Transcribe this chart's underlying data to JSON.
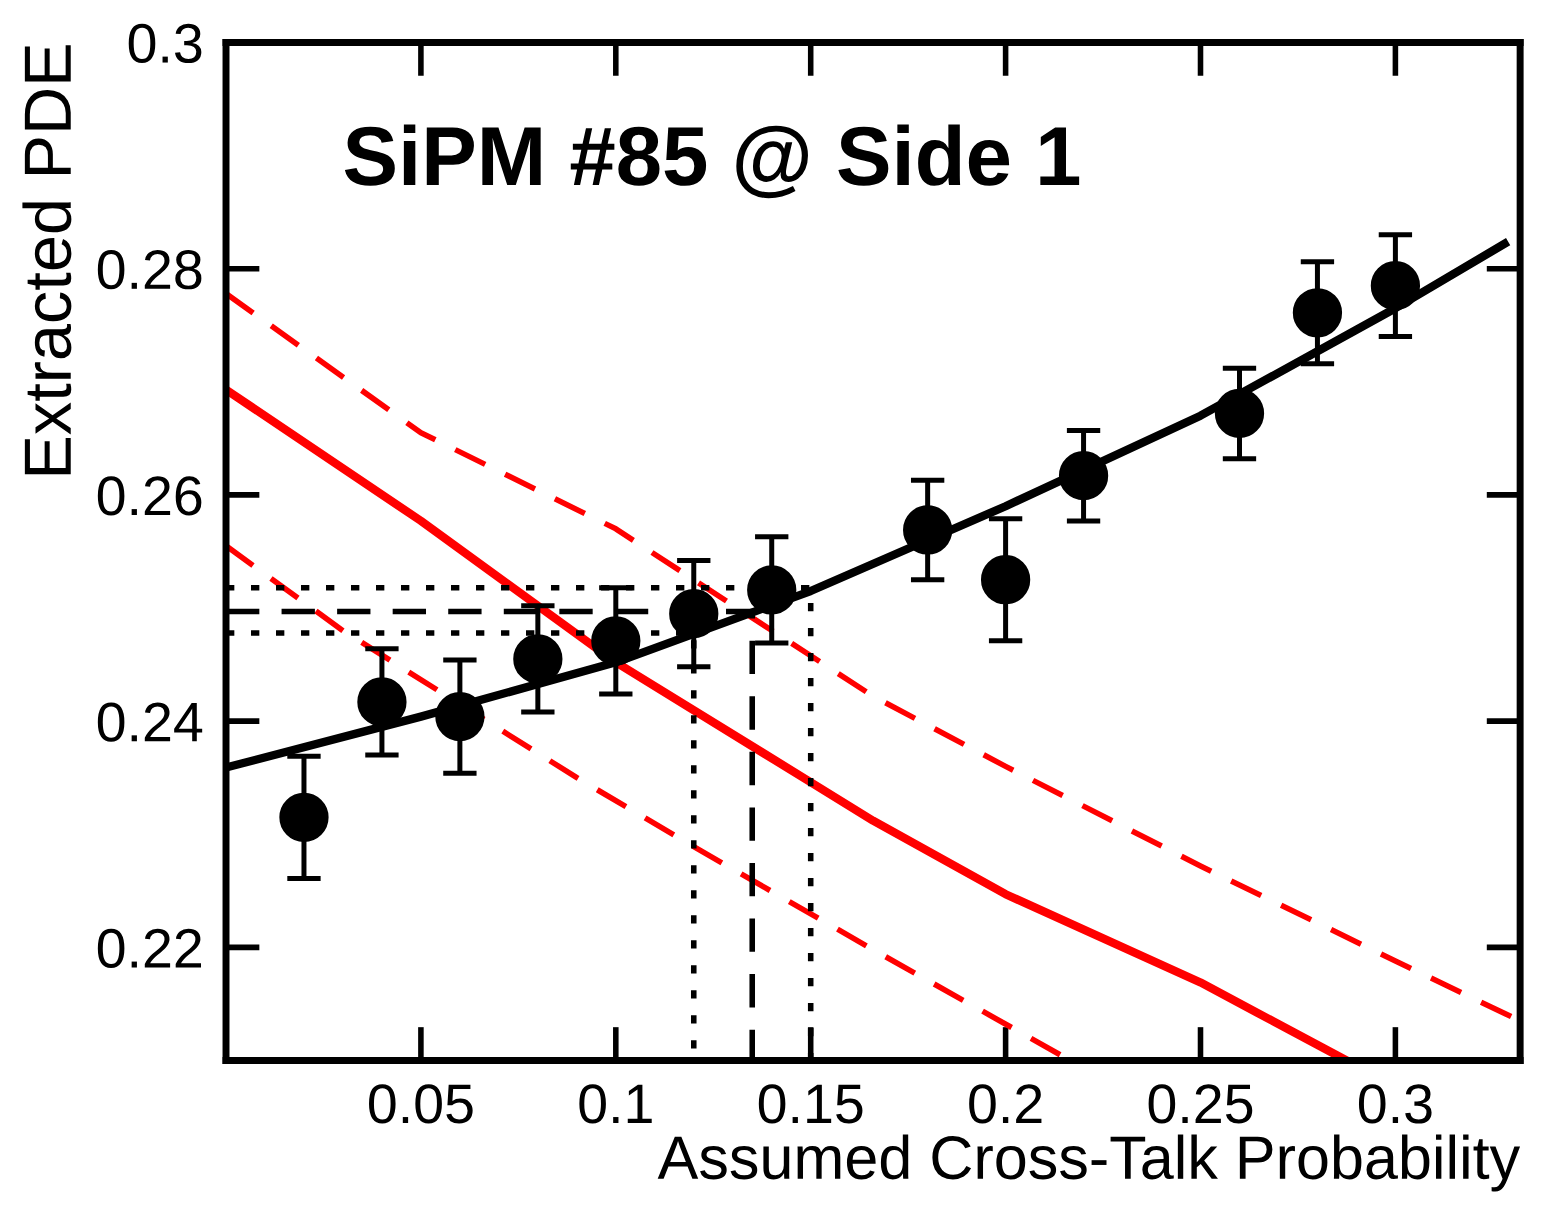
{
  "chart_data": {
    "type": "scatter",
    "xlabel": "Assumed Cross-Talk Probability",
    "ylabel": "Extracted PDE",
    "annotations": [
      "SiPM #85 @ Side 1"
    ],
    "xlim": [
      0,
      0.332
    ],
    "ylim": [
      0.21,
      0.3
    ],
    "xticks": [
      0.05,
      0.1,
      0.15,
      0.2,
      0.25,
      0.3
    ],
    "yticks": [
      0.22,
      0.24,
      0.26,
      0.28,
      0.3
    ],
    "series": [
      {
        "type": "line",
        "color": "#ff0000",
        "line_style": "dashed",
        "x": [
          0,
          0.05,
          0.1,
          0.12,
          0.166,
          0.2,
          0.25,
          0.3,
          0.332
        ],
        "values": [
          0.2778,
          0.2655,
          0.257,
          0.2525,
          0.2422,
          0.236,
          0.2272,
          0.2188,
          0.2135
        ]
      },
      {
        "type": "line",
        "color": "#ff0000",
        "line_style": "dashed",
        "x": [
          0,
          0.03,
          0.09,
          0.12,
          0.166,
          0.2166
        ],
        "values": [
          0.2555,
          0.248,
          0.235,
          0.2289,
          0.2198,
          0.21
        ]
      },
      {
        "type": "line",
        "color": "#ff0000",
        "line_style": "solid",
        "x": [
          0,
          0.05,
          0.1,
          0.15,
          0.166,
          0.2,
          0.25,
          0.2875
        ],
        "values": [
          0.2693,
          0.2577,
          0.2452,
          0.2346,
          0.2312,
          0.2247,
          0.2169,
          0.21
        ]
      },
      {
        "type": "line",
        "color": "#000000",
        "line_style": "dotted",
        "x": [
          0,
          0.15,
          0.15
        ],
        "values": [
          0.2518,
          0.2518,
          0.21
        ]
      },
      {
        "type": "line",
        "color": "#000000",
        "line_style": "dotted",
        "x": [
          0,
          0.12,
          0.12
        ],
        "values": [
          0.2478,
          0.2478,
          0.21
        ]
      },
      {
        "type": "line",
        "color": "#000000",
        "line_style": "dashed",
        "x": [
          0,
          0.135,
          0.135
        ],
        "values": [
          0.2497,
          0.2497,
          0.21
        ]
      },
      {
        "type": "line",
        "color": "#000000",
        "line_style": "solid",
        "x": [
          0,
          0.05,
          0.1,
          0.15,
          0.2,
          0.25,
          0.3,
          0.328
        ],
        "values": [
          0.2359,
          0.2404,
          0.2452,
          0.2515,
          0.259,
          0.267,
          0.2765,
          0.2822
        ]
      },
      {
        "color": "#000000",
        "marker": "circle",
        "x": [
          0.02,
          0.04,
          0.06,
          0.08,
          0.1,
          0.12,
          0.14,
          0.18,
          0.2,
          0.22,
          0.26,
          0.28,
          0.3
        ],
        "values": [
          0.2315,
          0.2417,
          0.2404,
          0.2455,
          0.2471,
          0.2495,
          0.2516,
          0.2569,
          0.2525,
          0.2617,
          0.2672,
          0.2761,
          0.2785
        ],
        "errors": [
          0.0054,
          0.0047,
          0.005,
          0.0047,
          0.0047,
          0.0047,
          0.0047,
          0.0044,
          0.0054,
          0.004,
          0.004,
          0.0045,
          0.0045
        ]
      }
    ]
  }
}
